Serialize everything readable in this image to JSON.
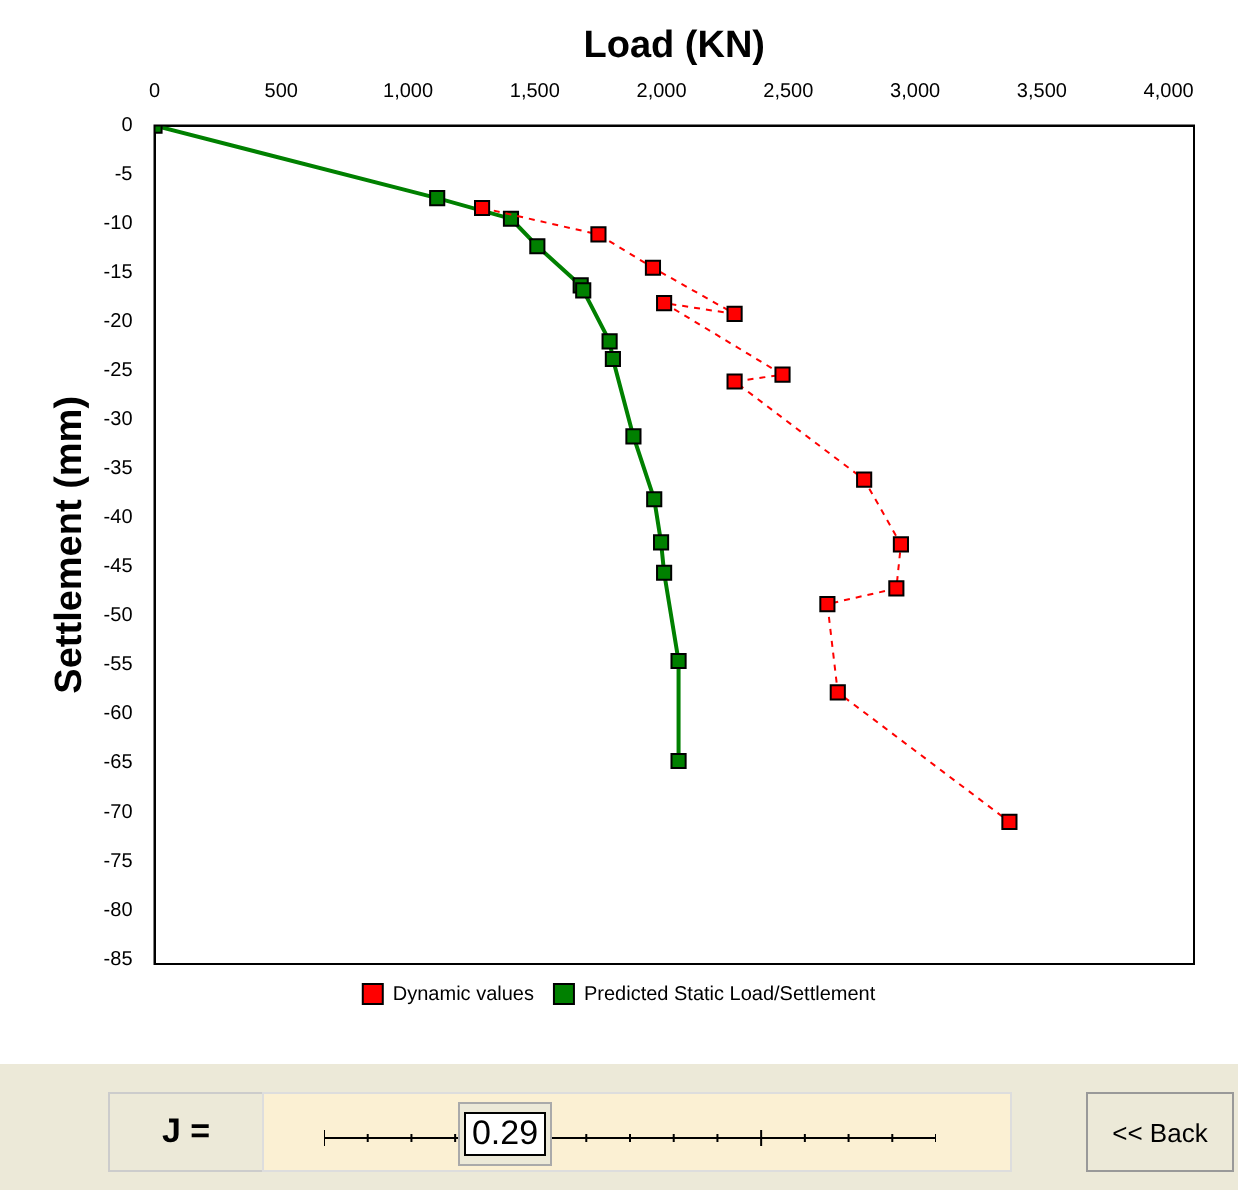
{
  "chart_data": {
    "type": "line",
    "xlabel": "Load (KN)",
    "ylabel": "Settlement (mm)",
    "xlim": [
      0,
      4100
    ],
    "ylim": [
      -85.5,
      0
    ],
    "xticks": [
      0,
      500,
      {
        "value": 1000,
        "label": "1,000"
      },
      {
        "value": 1500,
        "label": "1,500"
      },
      {
        "value": 2000,
        "label": "2,000"
      },
      {
        "value": 2500,
        "label": "2,500"
      },
      {
        "value": 3000,
        "label": "3,000"
      },
      {
        "value": 3500,
        "label": "3,500"
      },
      {
        "value": 4000,
        "label": "4,000"
      }
    ],
    "yticks": [
      0,
      -5,
      -10,
      -15,
      -20,
      -25,
      -30,
      -35,
      -40,
      -45,
      -50,
      -55,
      -60,
      -65,
      -70,
      -75,
      -80,
      -85
    ],
    "grid": false,
    "legend": "bottom",
    "marker": "square",
    "series": [
      {
        "name": "Dynamic values",
        "color": "#ff0000",
        "line_style": "dashed",
        "x": [
          1292,
          1751,
          1966,
          2288,
          2010,
          2477,
          2288,
          2799,
          2944,
          2926,
          2654,
          2695,
          3372
        ],
        "values": [
          -8.4,
          -11.1,
          -14.5,
          -19.2,
          -18.1,
          -25.4,
          -26.1,
          -36.1,
          -42.7,
          -47.2,
          -48.8,
          -57.8,
          -71.0
        ]
      },
      {
        "name": "Predicted Static Load/Settlement",
        "color": "#008000",
        "line_style": "solid",
        "x": [
          0,
          1115,
          1406,
          1510,
          1681,
          1691,
          1795,
          1808,
          1889,
          1971,
          1998,
          2010,
          2067,
          2067
        ],
        "values": [
          0,
          -7.4,
          -9.5,
          -12.3,
          -16.3,
          -16.8,
          -22.0,
          -23.8,
          -31.7,
          -38.1,
          -42.5,
          -45.6,
          -54.6,
          -64.8
        ]
      }
    ],
    "annotations": [
      "J =",
      "0.29",
      "<< Back"
    ]
  }
}
